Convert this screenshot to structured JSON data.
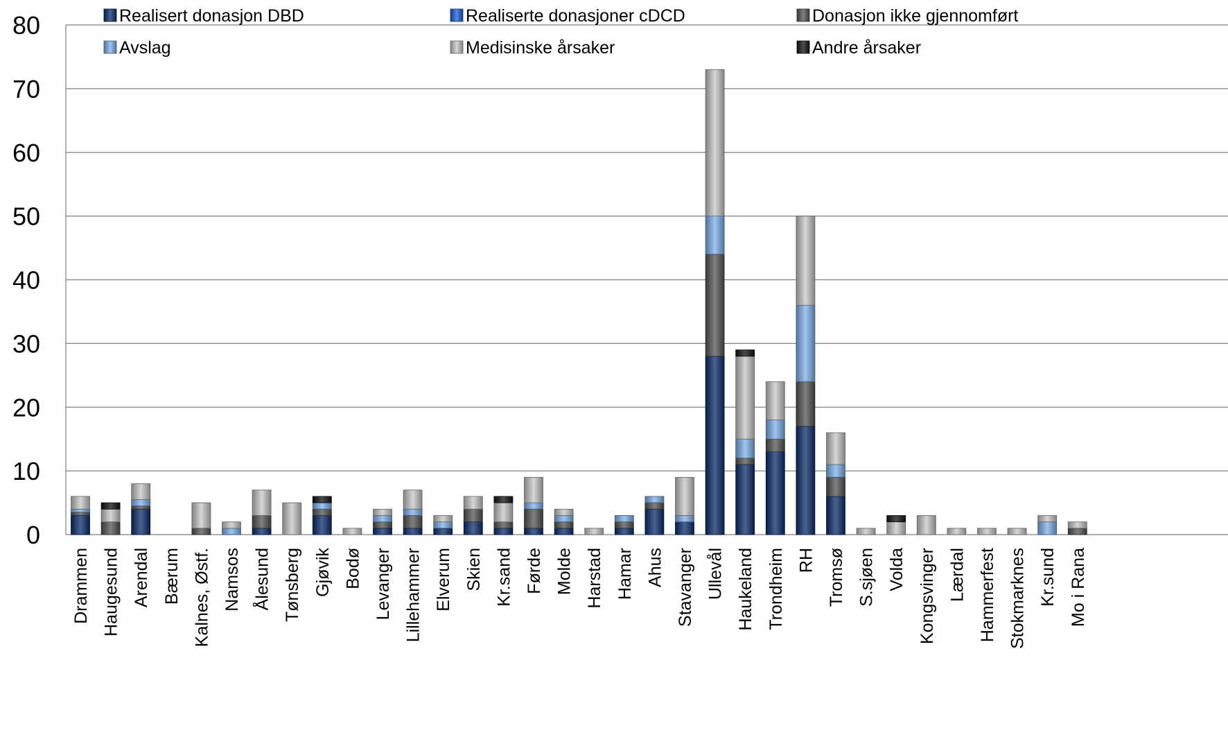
{
  "chart_data": {
    "type": "bar",
    "stacked": true,
    "categories": [
      "Drammen",
      "Haugesund",
      "Arendal",
      "Bærum",
      "Kalnes, Østf.",
      "Namsos",
      "Ålesund",
      "Tønsberg",
      "Gjøvik",
      "Bodø",
      "Levanger",
      "Lillehammer",
      "Elverum",
      "Skien",
      "Kr.sand",
      "Førde",
      "Molde",
      "Harstad",
      "Hamar",
      "Ahus",
      "Stavanger",
      "Ullevål",
      "Haukeland",
      "Trondheim",
      "RH",
      "Tromsø",
      "S.sjøen",
      "Volda",
      "Kongsvinger",
      "Lærdal",
      "Hammerfest",
      "Stokmarknes",
      "Kr.sund",
      "Mo i Rana"
    ],
    "series": [
      {
        "name": "Realisert donasjon DBD",
        "color": "#0c2d6b",
        "values": [
          3,
          0,
          4,
          0,
          0,
          0,
          1,
          0,
          3,
          0,
          1,
          1,
          1,
          2,
          1,
          1,
          1,
          0,
          1,
          4,
          2,
          28,
          11,
          13,
          17,
          6,
          0,
          0,
          0,
          0,
          0,
          0,
          0,
          0
        ]
      },
      {
        "name": "Realiserte donasjoner cDCD",
        "color": "#1f5fd6",
        "values": [
          0,
          0,
          0,
          0,
          0,
          0,
          0,
          0,
          0,
          0,
          0,
          0,
          0,
          0,
          0,
          0,
          0,
          0,
          0,
          0,
          0,
          0,
          0,
          0,
          0,
          0,
          0,
          0,
          0,
          0,
          0,
          0,
          0,
          0
        ]
      },
      {
        "name": "Donasjon ikke gjennomført",
        "color": "#555555",
        "values": [
          0.5,
          2,
          0.5,
          0,
          1,
          0,
          2,
          0,
          1,
          0,
          1,
          2,
          0,
          2,
          1,
          3,
          1,
          0,
          1,
          1,
          0,
          16,
          1,
          2,
          7,
          3,
          0,
          0,
          0,
          0,
          0,
          0,
          0,
          1
        ]
      },
      {
        "name": "Avslag",
        "color": "#7fb2ec",
        "values": [
          0.5,
          0,
          1,
          0,
          0,
          1,
          0,
          0,
          1,
          0,
          1,
          1,
          1,
          0,
          0,
          1,
          1,
          0,
          1,
          1,
          1,
          6,
          3,
          3,
          12,
          2,
          0,
          0,
          0,
          0,
          0,
          0,
          2,
          0
        ]
      },
      {
        "name": "Medisinske årsaker",
        "color": "#c8c8c8",
        "values": [
          2,
          2,
          2.5,
          0,
          4,
          1,
          4,
          5,
          0,
          1,
          1,
          3,
          1,
          2,
          3,
          4,
          1,
          1,
          0,
          0,
          6,
          23,
          13,
          6,
          14,
          5,
          1,
          2,
          3,
          1,
          1,
          1,
          1,
          1
        ]
      },
      {
        "name": "Andre årsaker",
        "color": "#111111",
        "values": [
          0,
          1,
          0,
          0,
          0,
          0,
          0,
          0,
          1,
          0,
          0,
          0,
          0,
          0,
          1,
          0,
          0,
          0,
          0,
          0,
          0,
          0,
          1,
          0,
          0,
          0,
          0,
          1,
          0,
          0,
          0,
          0,
          0,
          0
        ]
      }
    ],
    "ylim": [
      0,
      80
    ],
    "yticks": [
      0,
      10,
      20,
      30,
      40,
      50,
      60,
      70,
      80
    ],
    "grid": true,
    "legend_position": "top"
  }
}
